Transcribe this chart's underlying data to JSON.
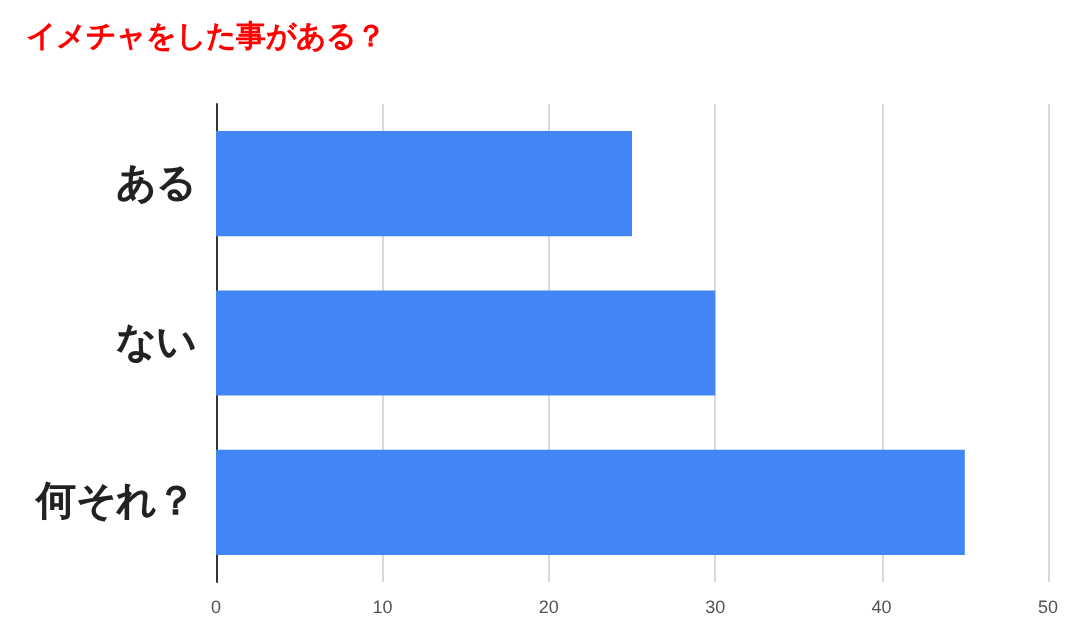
{
  "chart_data": {
    "type": "bar",
    "orientation": "horizontal",
    "title": "イメチャをした事がある？",
    "categories": [
      "ある",
      "ない",
      "何それ？"
    ],
    "values": [
      25,
      30,
      45
    ],
    "color": "#4285f4",
    "xlim": [
      0,
      50
    ],
    "xticks": [
      0,
      10,
      20,
      30,
      40,
      50
    ],
    "grid": "x"
  }
}
